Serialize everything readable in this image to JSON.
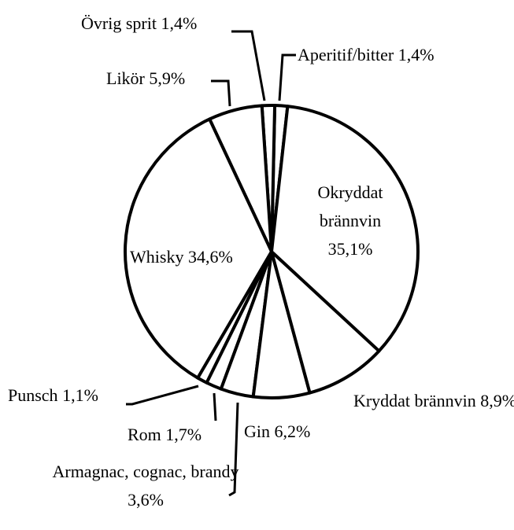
{
  "chart_data": {
    "type": "pie",
    "categories": [
      "Okryddat brännvin",
      "Kryddat brännvin",
      "Gin",
      "Armagnac, cognac, brandy",
      "Rom",
      "Punsch",
      "Whisky",
      "Likör",
      "Övrig sprit",
      "Aperitif/bitter"
    ],
    "values": [
      35.1,
      8.9,
      6.2,
      3.6,
      1.7,
      1.1,
      34.6,
      5.9,
      1.4,
      1.4
    ],
    "value_labels": [
      "35,1%",
      "8,9%",
      "6,2%",
      "3,6%",
      "1,7%",
      "1,1%",
      "34,6%",
      "5,9%",
      "1,4%",
      "1,4%"
    ],
    "color": "#ffffff"
  }
}
